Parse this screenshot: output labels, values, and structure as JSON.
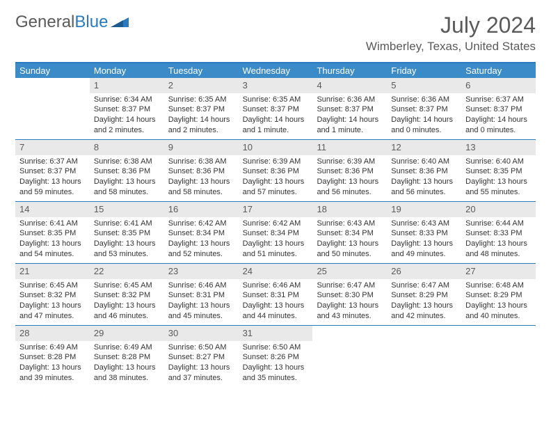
{
  "logo": {
    "part1": "General",
    "part2": "Blue"
  },
  "title": "July 2024",
  "location": "Wimberley, Texas, United States",
  "accent_color": "#3b8bc9",
  "border_color": "#2a7ac0",
  "daynum_bg": "#e9e9e9",
  "text_color": "#333333",
  "muted_color": "#5a5a5a",
  "font_size_title": 32,
  "font_size_location": 17,
  "font_size_header": 13,
  "font_size_daynum": 13,
  "font_size_detail": 11,
  "day_names": [
    "Sunday",
    "Monday",
    "Tuesday",
    "Wednesday",
    "Thursday",
    "Friday",
    "Saturday"
  ],
  "weeks": [
    [
      {
        "n": "",
        "sr": "",
        "ss": "",
        "dl": ""
      },
      {
        "n": "1",
        "sr": "Sunrise: 6:34 AM",
        "ss": "Sunset: 8:37 PM",
        "dl": "Daylight: 14 hours and 2 minutes."
      },
      {
        "n": "2",
        "sr": "Sunrise: 6:35 AM",
        "ss": "Sunset: 8:37 PM",
        "dl": "Daylight: 14 hours and 2 minutes."
      },
      {
        "n": "3",
        "sr": "Sunrise: 6:35 AM",
        "ss": "Sunset: 8:37 PM",
        "dl": "Daylight: 14 hours and 1 minute."
      },
      {
        "n": "4",
        "sr": "Sunrise: 6:36 AM",
        "ss": "Sunset: 8:37 PM",
        "dl": "Daylight: 14 hours and 1 minute."
      },
      {
        "n": "5",
        "sr": "Sunrise: 6:36 AM",
        "ss": "Sunset: 8:37 PM",
        "dl": "Daylight: 14 hours and 0 minutes."
      },
      {
        "n": "6",
        "sr": "Sunrise: 6:37 AM",
        "ss": "Sunset: 8:37 PM",
        "dl": "Daylight: 14 hours and 0 minutes."
      }
    ],
    [
      {
        "n": "7",
        "sr": "Sunrise: 6:37 AM",
        "ss": "Sunset: 8:37 PM",
        "dl": "Daylight: 13 hours and 59 minutes."
      },
      {
        "n": "8",
        "sr": "Sunrise: 6:38 AM",
        "ss": "Sunset: 8:36 PM",
        "dl": "Daylight: 13 hours and 58 minutes."
      },
      {
        "n": "9",
        "sr": "Sunrise: 6:38 AM",
        "ss": "Sunset: 8:36 PM",
        "dl": "Daylight: 13 hours and 58 minutes."
      },
      {
        "n": "10",
        "sr": "Sunrise: 6:39 AM",
        "ss": "Sunset: 8:36 PM",
        "dl": "Daylight: 13 hours and 57 minutes."
      },
      {
        "n": "11",
        "sr": "Sunrise: 6:39 AM",
        "ss": "Sunset: 8:36 PM",
        "dl": "Daylight: 13 hours and 56 minutes."
      },
      {
        "n": "12",
        "sr": "Sunrise: 6:40 AM",
        "ss": "Sunset: 8:36 PM",
        "dl": "Daylight: 13 hours and 56 minutes."
      },
      {
        "n": "13",
        "sr": "Sunrise: 6:40 AM",
        "ss": "Sunset: 8:35 PM",
        "dl": "Daylight: 13 hours and 55 minutes."
      }
    ],
    [
      {
        "n": "14",
        "sr": "Sunrise: 6:41 AM",
        "ss": "Sunset: 8:35 PM",
        "dl": "Daylight: 13 hours and 54 minutes."
      },
      {
        "n": "15",
        "sr": "Sunrise: 6:41 AM",
        "ss": "Sunset: 8:35 PM",
        "dl": "Daylight: 13 hours and 53 minutes."
      },
      {
        "n": "16",
        "sr": "Sunrise: 6:42 AM",
        "ss": "Sunset: 8:34 PM",
        "dl": "Daylight: 13 hours and 52 minutes."
      },
      {
        "n": "17",
        "sr": "Sunrise: 6:42 AM",
        "ss": "Sunset: 8:34 PM",
        "dl": "Daylight: 13 hours and 51 minutes."
      },
      {
        "n": "18",
        "sr": "Sunrise: 6:43 AM",
        "ss": "Sunset: 8:34 PM",
        "dl": "Daylight: 13 hours and 50 minutes."
      },
      {
        "n": "19",
        "sr": "Sunrise: 6:43 AM",
        "ss": "Sunset: 8:33 PM",
        "dl": "Daylight: 13 hours and 49 minutes."
      },
      {
        "n": "20",
        "sr": "Sunrise: 6:44 AM",
        "ss": "Sunset: 8:33 PM",
        "dl": "Daylight: 13 hours and 48 minutes."
      }
    ],
    [
      {
        "n": "21",
        "sr": "Sunrise: 6:45 AM",
        "ss": "Sunset: 8:32 PM",
        "dl": "Daylight: 13 hours and 47 minutes."
      },
      {
        "n": "22",
        "sr": "Sunrise: 6:45 AM",
        "ss": "Sunset: 8:32 PM",
        "dl": "Daylight: 13 hours and 46 minutes."
      },
      {
        "n": "23",
        "sr": "Sunrise: 6:46 AM",
        "ss": "Sunset: 8:31 PM",
        "dl": "Daylight: 13 hours and 45 minutes."
      },
      {
        "n": "24",
        "sr": "Sunrise: 6:46 AM",
        "ss": "Sunset: 8:31 PM",
        "dl": "Daylight: 13 hours and 44 minutes."
      },
      {
        "n": "25",
        "sr": "Sunrise: 6:47 AM",
        "ss": "Sunset: 8:30 PM",
        "dl": "Daylight: 13 hours and 43 minutes."
      },
      {
        "n": "26",
        "sr": "Sunrise: 6:47 AM",
        "ss": "Sunset: 8:29 PM",
        "dl": "Daylight: 13 hours and 42 minutes."
      },
      {
        "n": "27",
        "sr": "Sunrise: 6:48 AM",
        "ss": "Sunset: 8:29 PM",
        "dl": "Daylight: 13 hours and 40 minutes."
      }
    ],
    [
      {
        "n": "28",
        "sr": "Sunrise: 6:49 AM",
        "ss": "Sunset: 8:28 PM",
        "dl": "Daylight: 13 hours and 39 minutes."
      },
      {
        "n": "29",
        "sr": "Sunrise: 6:49 AM",
        "ss": "Sunset: 8:28 PM",
        "dl": "Daylight: 13 hours and 38 minutes."
      },
      {
        "n": "30",
        "sr": "Sunrise: 6:50 AM",
        "ss": "Sunset: 8:27 PM",
        "dl": "Daylight: 13 hours and 37 minutes."
      },
      {
        "n": "31",
        "sr": "Sunrise: 6:50 AM",
        "ss": "Sunset: 8:26 PM",
        "dl": "Daylight: 13 hours and 35 minutes."
      },
      {
        "n": "",
        "sr": "",
        "ss": "",
        "dl": ""
      },
      {
        "n": "",
        "sr": "",
        "ss": "",
        "dl": ""
      },
      {
        "n": "",
        "sr": "",
        "ss": "",
        "dl": ""
      }
    ]
  ]
}
